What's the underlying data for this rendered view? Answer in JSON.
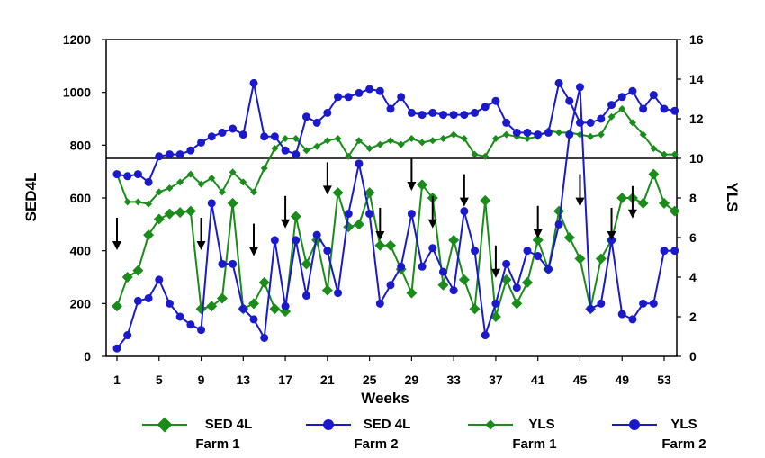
{
  "chart_data": {
    "type": "line",
    "title": "",
    "xlabel": "Weeks",
    "ylabel_left": "SED4L",
    "ylabel_right": "YLS",
    "x": [
      1,
      2,
      3,
      4,
      5,
      6,
      7,
      8,
      9,
      10,
      11,
      12,
      13,
      14,
      15,
      16,
      17,
      18,
      19,
      20,
      21,
      22,
      23,
      24,
      25,
      26,
      27,
      28,
      29,
      30,
      31,
      32,
      33,
      34,
      35,
      36,
      37,
      38,
      39,
      40,
      41,
      42,
      43,
      44,
      45,
      46,
      47,
      48,
      49,
      50,
      51,
      52,
      53,
      54
    ],
    "x_tick_labels": [
      "1",
      "5",
      "9",
      "13",
      "17",
      "21",
      "25",
      "29",
      "33",
      "37",
      "41",
      "45",
      "49",
      "53"
    ],
    "x_ticks": [
      1,
      5,
      9,
      13,
      17,
      21,
      25,
      29,
      33,
      37,
      41,
      45,
      49,
      53
    ],
    "ylim_left": [
      0,
      1200
    ],
    "yticks_left": [
      "0",
      "200",
      "400",
      "600",
      "800",
      "1000",
      "1200"
    ],
    "ylim_right": [
      0,
      16
    ],
    "yticks_right": [
      "0",
      "2",
      "4",
      "6",
      "8",
      "10",
      "12",
      "14",
      "16"
    ],
    "reference_line_yls": 10,
    "series": [
      {
        "label_line1": "SED 4L",
        "label_line2": "Farm 1",
        "axis": "left",
        "color": "#1a8c1a",
        "marker": "diamond-large",
        "values": [
          190,
          300,
          325,
          460,
          520,
          540,
          545,
          550,
          180,
          190,
          220,
          580,
          180,
          200,
          280,
          180,
          170,
          530,
          350,
          440,
          250,
          620,
          490,
          500,
          620,
          420,
          420,
          330,
          240,
          650,
          600,
          270,
          440,
          290,
          180,
          590,
          150,
          290,
          200,
          280,
          440,
          330,
          550,
          450,
          370,
          180,
          370,
          440,
          600,
          600,
          580,
          690,
          580,
          550
        ]
      },
      {
        "label_line1": "SED 4L",
        "label_line2": "Farm 2",
        "axis": "left",
        "color": "#1a1acc",
        "marker": "circle",
        "values": [
          30,
          80,
          210,
          220,
          290,
          200,
          150,
          120,
          100,
          580,
          350,
          350,
          180,
          140,
          70,
          440,
          190,
          440,
          230,
          460,
          400,
          240,
          540,
          730,
          540,
          200,
          270,
          340,
          540,
          340,
          410,
          320,
          250,
          550,
          400,
          80,
          200,
          350,
          260,
          400,
          380,
          330,
          500,
          840,
          1020,
          180,
          200,
          440,
          160,
          140,
          200,
          200,
          400,
          400
        ]
      },
      {
        "label_line1": "YLS",
        "label_line2": "Farm 1",
        "axis": "right",
        "color": "#1a8c1a",
        "marker": "diamond-small",
        "values": [
          9.2,
          7.8,
          7.8,
          7.7,
          8.3,
          8.5,
          8.8,
          9.2,
          8.7,
          9.0,
          8.3,
          9.3,
          8.8,
          8.3,
          9.5,
          10.5,
          11.0,
          11.0,
          10.4,
          10.6,
          10.9,
          11.0,
          10.1,
          10.9,
          10.5,
          10.7,
          10.9,
          10.7,
          11.0,
          10.8,
          10.9,
          11.0,
          11.2,
          11.0,
          10.2,
          10.1,
          11.0,
          11.2,
          11.1,
          11.0,
          11.1,
          11.4,
          11.3,
          11.3,
          11.2,
          11.1,
          11.2,
          12.1,
          12.5,
          11.8,
          11.2,
          10.5,
          10.2,
          10.2
        ]
      },
      {
        "label_line1": "YLS",
        "label_line2": "Farm 2",
        "axis": "right",
        "color": "#1a1acc",
        "marker": "circle",
        "values": [
          9.2,
          9.1,
          9.2,
          8.8,
          10.1,
          10.2,
          10.2,
          10.4,
          10.8,
          11.1,
          11.3,
          11.5,
          11.2,
          13.8,
          11.1,
          11.1,
          10.4,
          10.2,
          12.1,
          11.8,
          12.3,
          13.1,
          13.1,
          13.3,
          13.5,
          13.4,
          12.5,
          13.1,
          12.3,
          12.2,
          12.3,
          12.2,
          12.2,
          12.2,
          12.3,
          12.6,
          12.9,
          11.8,
          11.3,
          11.3,
          11.2,
          11.3,
          13.8,
          12.9,
          11.8,
          11.8,
          12.0,
          12.7,
          13.1,
          13.4,
          12.5,
          13.2,
          12.5,
          12.4
        ]
      }
    ],
    "arrow_weeks": [
      1,
      9,
      14,
      17,
      21,
      26,
      29,
      31,
      34,
      37,
      41,
      45,
      48,
      50
    ]
  }
}
